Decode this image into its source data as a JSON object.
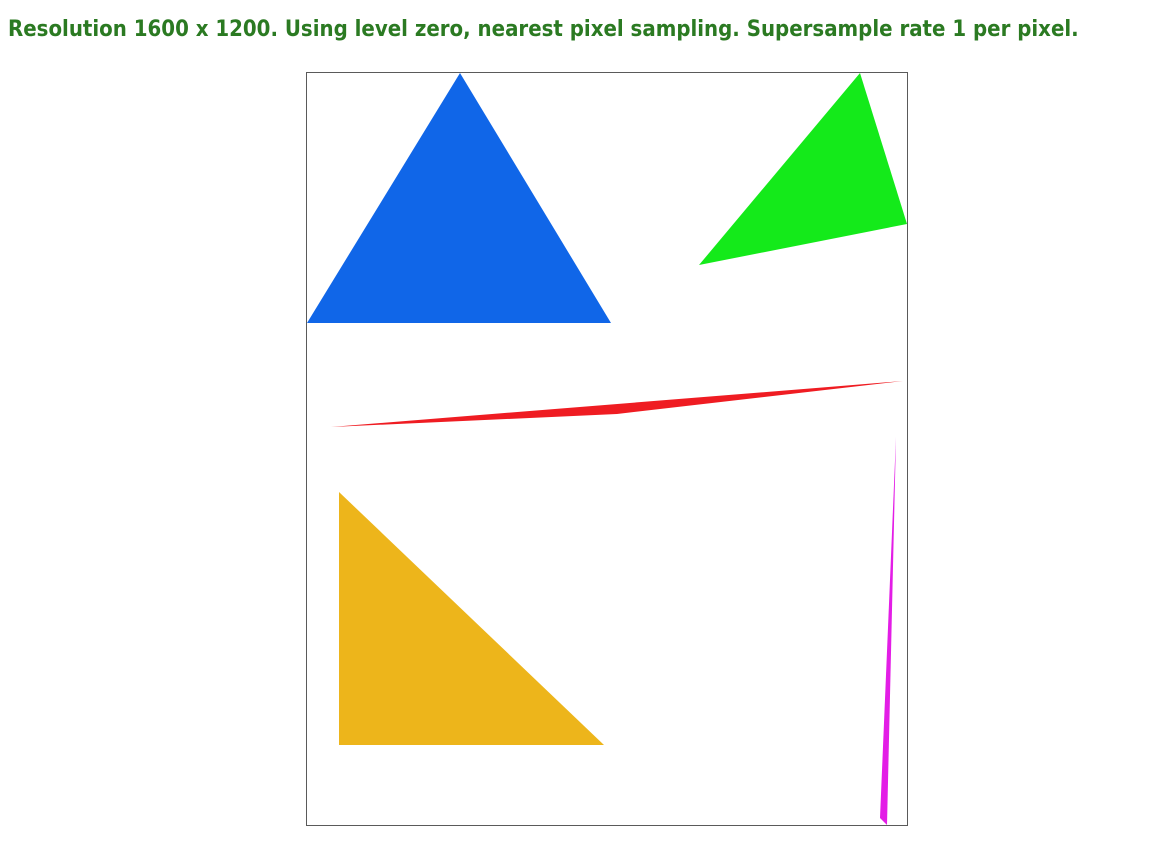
{
  "status": {
    "message": "Resolution 1600 x 1200. Using level zero, nearest pixel sampling. Supersample rate 1 per pixel."
  },
  "colors": {
    "status_text": "#2b7a22",
    "frame_border": "#5a5a5a",
    "background": "#ffffff",
    "blue": "#1066e8",
    "green": "#14ea1a",
    "red": "#ef1c22",
    "yellow": "#edb51b",
    "magenta": "#e31de6"
  },
  "shapes": [
    {
      "name": "blue-triangle",
      "color_key": "blue"
    },
    {
      "name": "green-triangle",
      "color_key": "green"
    },
    {
      "name": "red-sliver-triangle",
      "color_key": "red"
    },
    {
      "name": "yellow-triangle",
      "color_key": "yellow"
    },
    {
      "name": "magenta-sliver-triangle",
      "color_key": "magenta"
    }
  ]
}
